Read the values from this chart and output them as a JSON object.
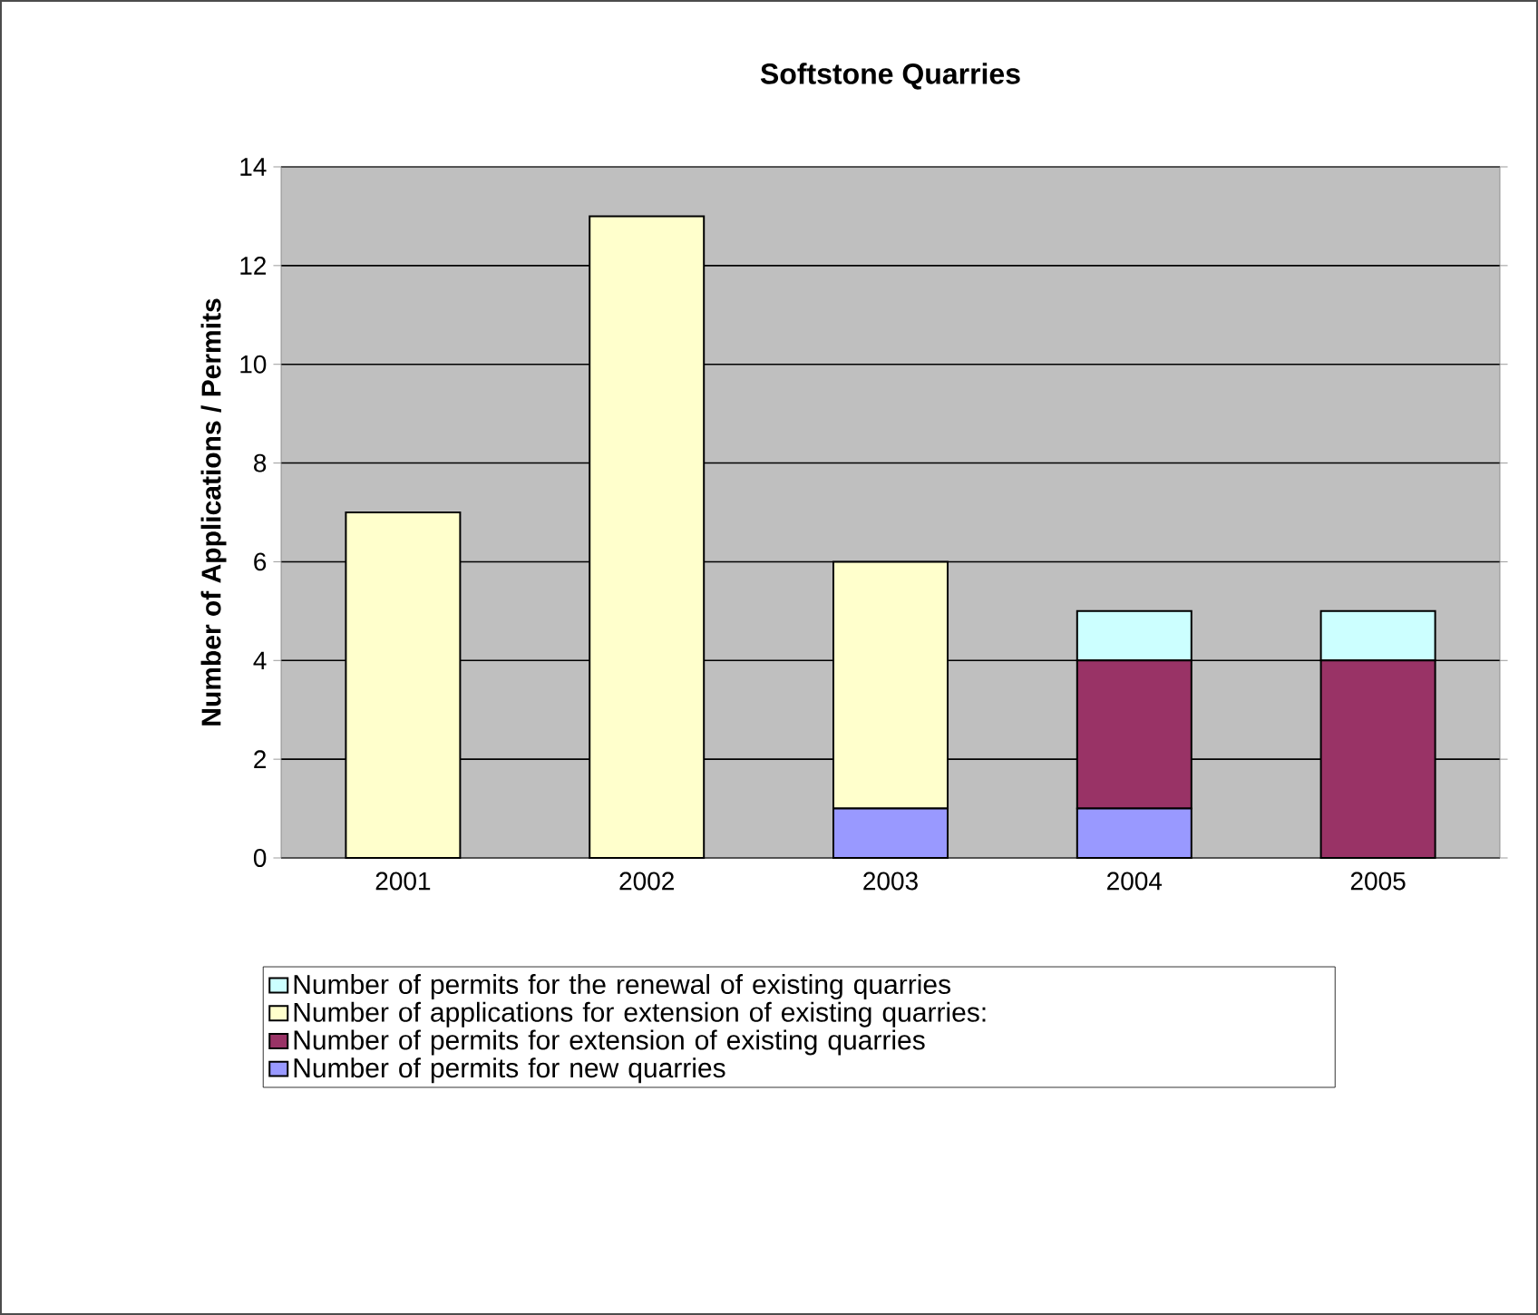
{
  "chart_data": {
    "type": "bar",
    "title": "Softstone Quarries",
    "ylabel": "Number of Applications / Permits",
    "categories": [
      "2001",
      "2002",
      "2003",
      "2004",
      "2005"
    ],
    "stacked": true,
    "series": [
      {
        "name": "Number of permits for new quarries",
        "color": "#9999ff",
        "values": [
          0,
          0,
          1,
          1,
          0
        ]
      },
      {
        "name": "Number of permits for extension of existing quarries",
        "color": "#993366",
        "values": [
          0,
          0,
          0,
          3,
          4
        ]
      },
      {
        "name": "Number of applications for extension of existing quarries:",
        "color": "#ffffcc",
        "values": [
          7,
          13,
          5,
          0,
          0
        ]
      },
      {
        "name": "Number of permits for the renewal of existing quarries",
        "color": "#ccffff",
        "values": [
          0,
          0,
          0,
          1,
          1
        ]
      }
    ],
    "ylim": [
      0,
      14
    ],
    "yticks": [
      0,
      2,
      4,
      6,
      8,
      10,
      12,
      14
    ],
    "grid": "y",
    "legend": "bottom"
  }
}
